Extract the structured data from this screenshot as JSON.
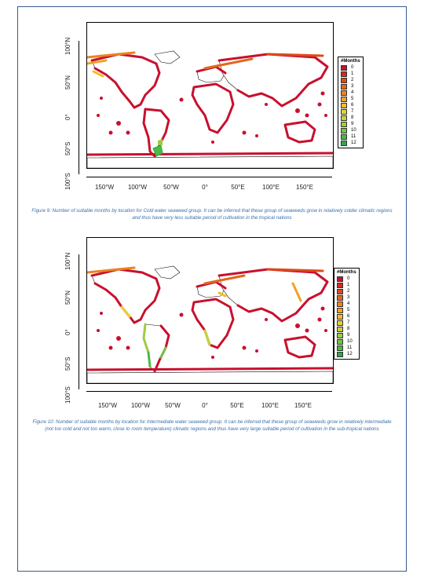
{
  "figures": [
    {
      "y_ticks": [
        "100°N",
        "50°N",
        "0°",
        "50°S",
        "100°S"
      ],
      "x_ticks": [
        "150°W",
        "100°W",
        "50°W",
        "0°",
        "50°E",
        "100°E",
        "150°E"
      ],
      "legend_title": "#Months",
      "caption": "Figure 9: Number of suitable months by location for Cold water seaweed group. It can be inferred that these group of seaweeds grow in relatively colder climatic regions and thus have very less suitable period of cultivation in the tropical nations"
    },
    {
      "y_ticks": [
        "100°N",
        "50°N",
        "0°",
        "50°S",
        "100°S"
      ],
      "x_ticks": [
        "150°W",
        "100°W",
        "50°W",
        "0°",
        "50°E",
        "100°E",
        "150°E"
      ],
      "legend_title": "#Months",
      "caption": "Figure 10: Number of suitable months by location for Intermediate water seaweed group. It can be inferred that these group of seaweeds grow in relatively intermediate (not too cold and not too warm, close to room temperature) climatic regions and thus have very large suitable period of cultivation in the sub-tropical nations"
    }
  ],
  "legend": {
    "labels": [
      "0",
      "1",
      "2",
      "3",
      "4",
      "5",
      "6",
      "7",
      "8",
      "9",
      "10",
      "11",
      "12"
    ],
    "colors": [
      "#c8102e",
      "#d42a1c",
      "#dc4a1a",
      "#e3661c",
      "#ea8420",
      "#f0a224",
      "#f2bd2a",
      "#e8d030",
      "#c5d23a",
      "#9ccc3e",
      "#74c442",
      "#4cb846",
      "#2ea84a"
    ]
  }
}
